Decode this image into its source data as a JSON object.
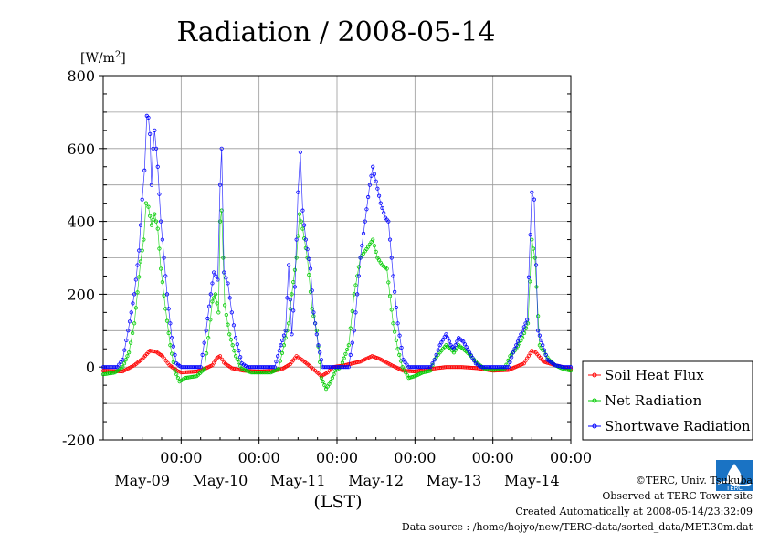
{
  "chart_data": {
    "type": "line",
    "title": "Radiation / 2008-05-14",
    "unit_label": "[W/m2]",
    "xlabel": "(LST)",
    "ylim": [
      -200,
      800
    ],
    "y_ticks": [
      -200,
      0,
      200,
      400,
      600,
      800
    ],
    "x_ticks": [
      {
        "time": "00:00",
        "date": "May-09"
      },
      {
        "time": "00:00",
        "date": "May-10"
      },
      {
        "time": "00:00",
        "date": "May-11"
      },
      {
        "time": "00:00",
        "date": "May-12"
      },
      {
        "time": "00:00",
        "date": "May-13"
      },
      {
        "time": "00:00",
        "date": "May-14"
      }
    ],
    "grid": true,
    "legend_position": "right",
    "series": [
      {
        "name": "Soil Heat Flux",
        "color": "#ff0000",
        "marker": "circle",
        "points": [
          [
            8.0,
            -10
          ],
          [
            8.25,
            -12
          ],
          [
            8.4,
            5
          ],
          [
            8.5,
            22
          ],
          [
            8.6,
            45
          ],
          [
            8.68,
            42
          ],
          [
            8.76,
            30
          ],
          [
            8.85,
            5
          ],
          [
            8.95,
            -10
          ],
          [
            9.0,
            -15
          ],
          [
            9.2,
            -12
          ],
          [
            9.3,
            -5
          ],
          [
            9.4,
            5
          ],
          [
            9.46,
            25
          ],
          [
            9.5,
            30
          ],
          [
            9.55,
            12
          ],
          [
            9.65,
            -3
          ],
          [
            9.8,
            -10
          ],
          [
            10.0,
            -12
          ],
          [
            10.2,
            -10
          ],
          [
            10.3,
            -5
          ],
          [
            10.4,
            8
          ],
          [
            10.48,
            30
          ],
          [
            10.55,
            20
          ],
          [
            10.65,
            3
          ],
          [
            10.72,
            -10
          ],
          [
            10.8,
            -25
          ],
          [
            10.88,
            -15
          ],
          [
            10.95,
            0
          ],
          [
            11.1,
            5
          ],
          [
            11.3,
            15
          ],
          [
            11.45,
            30
          ],
          [
            11.55,
            22
          ],
          [
            11.7,
            5
          ],
          [
            11.85,
            -10
          ],
          [
            12.0,
            -12
          ],
          [
            12.2,
            -5
          ],
          [
            12.4,
            0
          ],
          [
            12.6,
            0
          ],
          [
            12.8,
            -3
          ],
          [
            13.0,
            -10
          ],
          [
            13.2,
            -8
          ],
          [
            13.4,
            10
          ],
          [
            13.5,
            45
          ],
          [
            13.55,
            40
          ],
          [
            13.65,
            15
          ],
          [
            13.8,
            5
          ],
          [
            14.0,
            -5
          ]
        ]
      },
      {
        "name": "Net Radiation",
        "color": "#00cc00",
        "marker": "circle",
        "points": [
          [
            8.0,
            -20
          ],
          [
            8.15,
            -15
          ],
          [
            8.25,
            0
          ],
          [
            8.33,
            40
          ],
          [
            8.4,
            120
          ],
          [
            8.48,
            290
          ],
          [
            8.52,
            350
          ],
          [
            8.55,
            450
          ],
          [
            8.58,
            440
          ],
          [
            8.62,
            390
          ],
          [
            8.66,
            420
          ],
          [
            8.7,
            380
          ],
          [
            8.74,
            270
          ],
          [
            8.8,
            160
          ],
          [
            8.86,
            60
          ],
          [
            8.92,
            -10
          ],
          [
            8.98,
            -40
          ],
          [
            9.05,
            -30
          ],
          [
            9.2,
            -25
          ],
          [
            9.3,
            -5
          ],
          [
            9.35,
            80
          ],
          [
            9.4,
            180
          ],
          [
            9.44,
            200
          ],
          [
            9.48,
            150
          ],
          [
            9.5,
            400
          ],
          [
            9.52,
            430
          ],
          [
            9.56,
            170
          ],
          [
            9.62,
            90
          ],
          [
            9.7,
            30
          ],
          [
            9.78,
            -5
          ],
          [
            9.9,
            -15
          ],
          [
            10.0,
            -15
          ],
          [
            10.15,
            -15
          ],
          [
            10.25,
            -5
          ],
          [
            10.32,
            60
          ],
          [
            10.38,
            120
          ],
          [
            10.42,
            200
          ],
          [
            10.48,
            300
          ],
          [
            10.52,
            420
          ],
          [
            10.56,
            380
          ],
          [
            10.62,
            300
          ],
          [
            10.68,
            160
          ],
          [
            10.74,
            100
          ],
          [
            10.8,
            -30
          ],
          [
            10.86,
            -60
          ],
          [
            10.92,
            -40
          ],
          [
            10.98,
            -10
          ],
          [
            11.05,
            0
          ],
          [
            11.15,
            60
          ],
          [
            11.22,
            200
          ],
          [
            11.3,
            300
          ],
          [
            11.4,
            330
          ],
          [
            11.46,
            350
          ],
          [
            11.52,
            300
          ],
          [
            11.58,
            280
          ],
          [
            11.64,
            270
          ],
          [
            11.72,
            120
          ],
          [
            11.78,
            50
          ],
          [
            11.84,
            0
          ],
          [
            11.92,
            -30
          ],
          [
            12.0,
            -25
          ],
          [
            12.1,
            -15
          ],
          [
            12.2,
            -10
          ],
          [
            12.25,
            20
          ],
          [
            12.32,
            40
          ],
          [
            12.4,
            60
          ],
          [
            12.46,
            50
          ],
          [
            12.5,
            40
          ],
          [
            12.56,
            60
          ],
          [
            12.62,
            50
          ],
          [
            12.7,
            35
          ],
          [
            12.8,
            10
          ],
          [
            12.9,
            -5
          ],
          [
            13.0,
            -8
          ],
          [
            13.15,
            -5
          ],
          [
            13.22,
            30
          ],
          [
            13.3,
            50
          ],
          [
            13.38,
            80
          ],
          [
            13.45,
            120
          ],
          [
            13.5,
            350
          ],
          [
            13.54,
            300
          ],
          [
            13.6,
            60
          ],
          [
            13.66,
            40
          ],
          [
            13.72,
            20
          ],
          [
            13.8,
            5
          ],
          [
            13.9,
            -5
          ],
          [
            14.0,
            -10
          ]
        ]
      },
      {
        "name": "Shortwave Radiation",
        "color": "#0000ff",
        "marker": "circle",
        "points": [
          [
            8.0,
            0
          ],
          [
            8.18,
            0
          ],
          [
            8.25,
            20
          ],
          [
            8.32,
            100
          ],
          [
            8.4,
            200
          ],
          [
            8.46,
            320
          ],
          [
            8.5,
            460
          ],
          [
            8.53,
            540
          ],
          [
            8.56,
            690
          ],
          [
            8.58,
            685
          ],
          [
            8.6,
            640
          ],
          [
            8.62,
            500
          ],
          [
            8.64,
            600
          ],
          [
            8.66,
            650
          ],
          [
            8.7,
            550
          ],
          [
            8.74,
            400
          ],
          [
            8.78,
            300
          ],
          [
            8.82,
            200
          ],
          [
            8.88,
            80
          ],
          [
            8.94,
            10
          ],
          [
            9.0,
            0
          ],
          [
            9.25,
            0
          ],
          [
            9.32,
            100
          ],
          [
            9.38,
            200
          ],
          [
            9.42,
            260
          ],
          [
            9.47,
            240
          ],
          [
            9.5,
            500
          ],
          [
            9.52,
            600
          ],
          [
            9.55,
            260
          ],
          [
            9.6,
            230
          ],
          [
            9.65,
            150
          ],
          [
            9.7,
            80
          ],
          [
            9.78,
            10
          ],
          [
            9.85,
            0
          ],
          [
            10.2,
            0
          ],
          [
            10.28,
            60
          ],
          [
            10.34,
            100
          ],
          [
            10.38,
            280
          ],
          [
            10.42,
            90
          ],
          [
            10.46,
            220
          ],
          [
            10.5,
            480
          ],
          [
            10.53,
            590
          ],
          [
            10.56,
            430
          ],
          [
            10.6,
            350
          ],
          [
            10.66,
            270
          ],
          [
            10.7,
            150
          ],
          [
            10.76,
            60
          ],
          [
            10.82,
            0
          ],
          [
            11.15,
            0
          ],
          [
            11.22,
            100
          ],
          [
            11.3,
            300
          ],
          [
            11.36,
            400
          ],
          [
            11.42,
            500
          ],
          [
            11.46,
            550
          ],
          [
            11.5,
            510
          ],
          [
            11.56,
            450
          ],
          [
            11.62,
            410
          ],
          [
            11.66,
            400
          ],
          [
            11.72,
            250
          ],
          [
            11.78,
            120
          ],
          [
            11.85,
            20
          ],
          [
            11.92,
            0
          ],
          [
            12.2,
            0
          ],
          [
            12.25,
            20
          ],
          [
            12.32,
            60
          ],
          [
            12.4,
            90
          ],
          [
            12.46,
            60
          ],
          [
            12.5,
            50
          ],
          [
            12.56,
            80
          ],
          [
            12.62,
            70
          ],
          [
            12.7,
            40
          ],
          [
            12.78,
            10
          ],
          [
            12.85,
            0
          ],
          [
            13.2,
            0
          ],
          [
            13.26,
            40
          ],
          [
            13.32,
            70
          ],
          [
            13.38,
            100
          ],
          [
            13.44,
            130
          ],
          [
            13.5,
            480
          ],
          [
            13.53,
            460
          ],
          [
            13.58,
            100
          ],
          [
            13.64,
            60
          ],
          [
            13.7,
            20
          ],
          [
            13.8,
            5
          ],
          [
            13.9,
            0
          ],
          [
            14.0,
            0
          ]
        ]
      }
    ]
  },
  "credits": {
    "copyright": "©TERC, Univ. Tsukuba",
    "observed": "Observed at TERC Tower site",
    "created": "Created Automatically at 2008-05-14/23:32:09",
    "source": "Data source : /home/hojyo/new/TERC-data/sorted_data/MET.30m.dat"
  },
  "logo": {
    "text": "TERC",
    "color": "#1a73c4"
  }
}
